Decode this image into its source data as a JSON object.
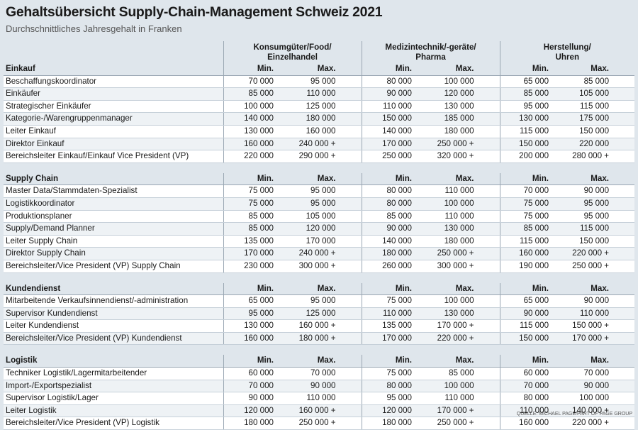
{
  "header": {
    "title": "Gehaltsübersicht Supply-Chain-Management Schweiz 2021",
    "subtitle": "Durchschnittliches Jahresgehalt in Franken"
  },
  "table": {
    "column_groups": [
      [
        "Konsumgüter/Food/",
        "Einzelhandel"
      ],
      [
        "Medizintechnik/-geräte/",
        "Pharma"
      ],
      [
        "Herstellung/",
        "Uhren"
      ]
    ],
    "sections": [
      {
        "name": "Einkauf",
        "columns": [
          "Min.",
          "Max.",
          "Min.",
          "Max.",
          "Min.",
          "Max."
        ],
        "rows": [
          {
            "label": "Beschaffungskoordinator",
            "values": [
              "70 000",
              "95 000",
              "80 000",
              "100 000",
              "65 000",
              "85 000"
            ]
          },
          {
            "label": "Einkäufer",
            "values": [
              "85 000",
              "110 000",
              "90 000",
              "120 000",
              "85 000",
              "105 000"
            ]
          },
          {
            "label": "Strategischer Einkäufer",
            "values": [
              "100 000",
              "125 000",
              "110 000",
              "130 000",
              "95 000",
              "115 000"
            ]
          },
          {
            "label": "Kategorie-/Warengruppenmanager",
            "values": [
              "140 000",
              "180 000",
              "150 000",
              "185 000",
              "130 000",
              "175 000"
            ]
          },
          {
            "label": "Leiter Einkauf",
            "values": [
              "130 000",
              "160 000",
              "140 000",
              "180 000",
              "115 000",
              "150 000"
            ]
          },
          {
            "label": "Direktor Einkauf",
            "values": [
              "160 000",
              "240 000 +",
              "170 000",
              "250 000 +",
              "150 000",
              "220 000"
            ]
          },
          {
            "label": "Bereichsleiter Einkauf/Einkauf Vice President (VP)",
            "values": [
              "220 000",
              "290 000 +",
              "250 000",
              "320 000 +",
              "200 000",
              "280 000 +"
            ]
          }
        ]
      },
      {
        "name": "Supply Chain",
        "columns": [
          "Min.",
          "Max.",
          "Min.",
          "Max.",
          "Min.",
          "Max."
        ],
        "rows": [
          {
            "label": "Master Data/Stammdaten-Spezialist",
            "values": [
              "75 000",
              "95 000",
              "80 000",
              "110 000",
              "70 000",
              "90 000"
            ]
          },
          {
            "label": "Logistikkoordinator",
            "values": [
              "75 000",
              "95 000",
              "80 000",
              "100 000",
              "75 000",
              "95 000"
            ]
          },
          {
            "label": "Produktionsplaner",
            "values": [
              "85 000",
              "105 000",
              "85 000",
              "110 000",
              "75 000",
              "95 000"
            ]
          },
          {
            "label": "Supply/Demand Planner",
            "values": [
              "85 000",
              "120 000",
              "90 000",
              "130 000",
              "85 000",
              "115 000"
            ]
          },
          {
            "label": "Leiter Supply Chain",
            "values": [
              "135 000",
              "170 000",
              "140 000",
              "180 000",
              "115 000",
              "150 000"
            ]
          },
          {
            "label": "Direktor Supply Chain",
            "values": [
              "170 000",
              "240 000 +",
              "180 000",
              "250 000 +",
              "160 000",
              "220 000 +"
            ]
          },
          {
            "label": "Bereichsleiter/Vice President (VP) Supply Chain",
            "values": [
              "230 000",
              "300 000 +",
              "260 000",
              "300 000 +",
              "190 000",
              "250 000 +"
            ]
          }
        ]
      },
      {
        "name": "Kundendienst",
        "columns": [
          "Min.",
          "Max.",
          "Min.",
          "Max.",
          "Min.",
          "Max."
        ],
        "rows": [
          {
            "label": "Mitarbeitende Verkaufsinnendienst/-administration",
            "values": [
              "65 000",
              "95 000",
              "75 000",
              "100 000",
              "65 000",
              "90 000"
            ]
          },
          {
            "label": "Supervisor Kundendienst",
            "values": [
              "95 000",
              "125 000",
              "110 000",
              "130 000",
              "90 000",
              "110 000"
            ]
          },
          {
            "label": "Leiter Kundendienst",
            "values": [
              "130 000",
              "160 000 +",
              "135 000",
              "170 000 +",
              "115 000",
              "150 000 +"
            ]
          },
          {
            "label": "Bereichsleiter/Vice President (VP) Kundendienst",
            "values": [
              "160 000",
              "180 000 +",
              "170 000",
              "220 000 +",
              "150 000",
              "170 000 +"
            ]
          }
        ]
      },
      {
        "name": "Logistik",
        "columns": [
          "Min.",
          "Max.",
          "Min.",
          "Max.",
          "Min.",
          "Max."
        ],
        "rows": [
          {
            "label": "Techniker Logistik/Lagermitarbeitender",
            "values": [
              "60 000",
              "70 000",
              "75 000",
              "85 000",
              "60 000",
              "70 000"
            ]
          },
          {
            "label": "Import-/Exportspezialist",
            "values": [
              "70 000",
              "90 000",
              "80 000",
              "100 000",
              "70 000",
              "90 000"
            ]
          },
          {
            "label": "Supervisor Logistik/Lager",
            "values": [
              "90 000",
              "110 000",
              "95 000",
              "110 000",
              "80 000",
              "100 000"
            ]
          },
          {
            "label": "Leiter Logistik",
            "values": [
              "120 000",
              "160 000 +",
              "120 000",
              "170 000 +",
              "110 000",
              "140 000 +"
            ]
          },
          {
            "label": "Bereichsleiter/Vice President (VP) Logistik",
            "values": [
              "180 000",
              "250 000 +",
              "180 000",
              "250 000 +",
              "160 000",
              "220 000 +"
            ]
          }
        ]
      }
    ],
    "source": "QUELLE: MICHAEL PAGE/PART OF PAGE GROUP"
  }
}
